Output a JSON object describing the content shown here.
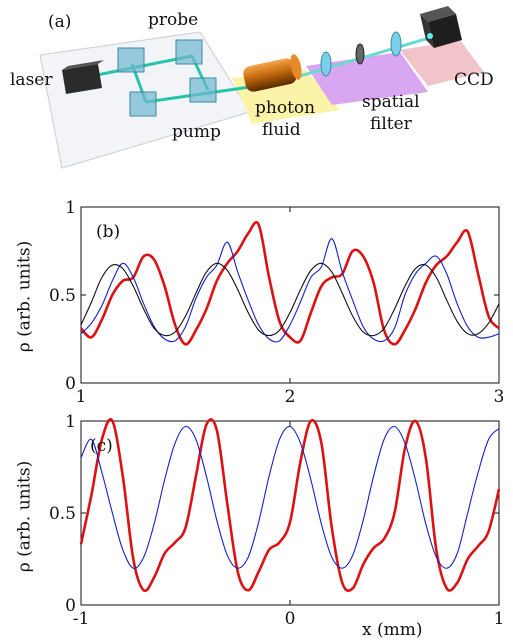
{
  "setup": {
    "panel_label": "(a)",
    "laser": "laser",
    "probe": "probe",
    "pump": "pump",
    "photon": "photon",
    "fluid": "fluid",
    "spatial": "spatial",
    "filter": "filter",
    "ccd": "CCD"
  },
  "chart_data": [
    {
      "type": "line",
      "panel_label": "(b)",
      "ylabel": "ρ (arb. units)",
      "xlim": [
        1,
        3
      ],
      "ylim": [
        0,
        1
      ],
      "xticks": [
        "1",
        "2",
        "3"
      ],
      "yticks": [
        "0",
        "0.5",
        "1"
      ],
      "series": [
        {
          "color": "#dd1111",
          "x": [
            1.0,
            1.05,
            1.1,
            1.15,
            1.2,
            1.25,
            1.3,
            1.35,
            1.4,
            1.45,
            1.5,
            1.55,
            1.6,
            1.65,
            1.7,
            1.75,
            1.8,
            1.85,
            1.9,
            1.95,
            2.0,
            2.05,
            2.1,
            2.15,
            2.2,
            2.25,
            2.3,
            2.35,
            2.4,
            2.45,
            2.5,
            2.55,
            2.6,
            2.65,
            2.7,
            2.75,
            2.8,
            2.85,
            2.9,
            2.95,
            3.0
          ],
          "values": [
            0.31,
            0.26,
            0.36,
            0.5,
            0.58,
            0.6,
            0.72,
            0.7,
            0.55,
            0.33,
            0.22,
            0.3,
            0.42,
            0.58,
            0.68,
            0.75,
            0.85,
            0.9,
            0.6,
            0.35,
            0.26,
            0.24,
            0.4,
            0.55,
            0.6,
            0.62,
            0.75,
            0.72,
            0.57,
            0.3,
            0.22,
            0.3,
            0.42,
            0.57,
            0.67,
            0.72,
            0.8,
            0.86,
            0.62,
            0.38,
            0.31
          ]
        },
        {
          "color": "#1122cc",
          "x": [
            1.0,
            1.05,
            1.1,
            1.15,
            1.2,
            1.25,
            1.3,
            1.35,
            1.4,
            1.45,
            1.5,
            1.55,
            1.6,
            1.65,
            1.7,
            1.75,
            1.8,
            1.85,
            1.9,
            1.95,
            2.0,
            2.05,
            2.1,
            2.15,
            2.2,
            2.25,
            2.3,
            2.35,
            2.4,
            2.45,
            2.5,
            2.55,
            2.6,
            2.65,
            2.7,
            2.75,
            2.8,
            2.85,
            2.9,
            2.95,
            3.0
          ],
          "values": [
            0.28,
            0.34,
            0.44,
            0.58,
            0.68,
            0.6,
            0.45,
            0.32,
            0.25,
            0.24,
            0.32,
            0.48,
            0.6,
            0.67,
            0.8,
            0.63,
            0.47,
            0.33,
            0.25,
            0.24,
            0.33,
            0.46,
            0.6,
            0.66,
            0.82,
            0.63,
            0.47,
            0.32,
            0.25,
            0.24,
            0.31,
            0.5,
            0.62,
            0.68,
            0.72,
            0.62,
            0.45,
            0.32,
            0.26,
            0.26,
            0.28
          ]
        },
        {
          "color": "#111111",
          "x": [
            1.0,
            1.05,
            1.1,
            1.15,
            1.2,
            1.25,
            1.3,
            1.35,
            1.4,
            1.45,
            1.5,
            1.55,
            1.6,
            1.65,
            1.7,
            1.75,
            1.8,
            1.85,
            1.9,
            1.95,
            2.0,
            2.05,
            2.1,
            2.15,
            2.2,
            2.25,
            2.3,
            2.35,
            2.4,
            2.45,
            2.5,
            2.55,
            2.6,
            2.65,
            2.7,
            2.75,
            2.8,
            2.85,
            2.9,
            2.95,
            3.0
          ],
          "values": [
            0.33,
            0.46,
            0.6,
            0.67,
            0.65,
            0.55,
            0.42,
            0.31,
            0.27,
            0.29,
            0.38,
            0.51,
            0.63,
            0.68,
            0.64,
            0.53,
            0.4,
            0.3,
            0.27,
            0.3,
            0.4,
            0.53,
            0.64,
            0.68,
            0.63,
            0.51,
            0.38,
            0.29,
            0.27,
            0.31,
            0.42,
            0.55,
            0.65,
            0.67,
            0.6,
            0.47,
            0.35,
            0.28,
            0.28,
            0.34,
            0.45
          ]
        }
      ]
    },
    {
      "type": "line",
      "panel_label": "(c)",
      "ylabel": "ρ (arb. units)",
      "xlabel": "x (mm)",
      "xlim": [
        -1,
        1
      ],
      "ylim": [
        0,
        1
      ],
      "xticks": [
        "-1",
        "0",
        "1"
      ],
      "yticks": [
        "0",
        "0.5",
        "1"
      ],
      "series": [
        {
          "color": "#dd1111",
          "x": [
            -1.0,
            -0.95,
            -0.9,
            -0.85,
            -0.8,
            -0.75,
            -0.7,
            -0.65,
            -0.6,
            -0.55,
            -0.5,
            -0.45,
            -0.4,
            -0.35,
            -0.3,
            -0.25,
            -0.2,
            -0.15,
            -0.1,
            -0.05,
            0.0,
            0.05,
            0.1,
            0.15,
            0.2,
            0.25,
            0.3,
            0.35,
            0.4,
            0.45,
            0.5,
            0.55,
            0.6,
            0.65,
            0.7,
            0.75,
            0.8,
            0.85,
            0.9,
            0.95,
            1.0
          ],
          "values": [
            0.33,
            0.6,
            0.9,
            1.0,
            0.7,
            0.25,
            0.08,
            0.15,
            0.28,
            0.34,
            0.42,
            0.7,
            0.98,
            0.95,
            0.55,
            0.18,
            0.08,
            0.18,
            0.3,
            0.34,
            0.45,
            0.78,
            1.0,
            0.88,
            0.42,
            0.12,
            0.09,
            0.22,
            0.31,
            0.36,
            0.5,
            0.85,
            1.0,
            0.8,
            0.3,
            0.09,
            0.12,
            0.25,
            0.32,
            0.4,
            0.63
          ]
        },
        {
          "color": "#1122cc",
          "x": [
            -1.0,
            -0.95,
            -0.9,
            -0.85,
            -0.8,
            -0.75,
            -0.7,
            -0.65,
            -0.6,
            -0.55,
            -0.5,
            -0.45,
            -0.4,
            -0.35,
            -0.3,
            -0.25,
            -0.2,
            -0.15,
            -0.1,
            -0.05,
            0.0,
            0.05,
            0.1,
            0.15,
            0.2,
            0.25,
            0.3,
            0.35,
            0.4,
            0.45,
            0.5,
            0.55,
            0.6,
            0.65,
            0.7,
            0.75,
            0.8,
            0.85,
            0.9,
            0.95,
            1.0
          ],
          "values": [
            0.8,
            0.9,
            0.72,
            0.5,
            0.3,
            0.2,
            0.26,
            0.44,
            0.68,
            0.88,
            0.97,
            0.9,
            0.7,
            0.46,
            0.27,
            0.2,
            0.26,
            0.45,
            0.7,
            0.9,
            0.97,
            0.88,
            0.68,
            0.44,
            0.26,
            0.2,
            0.27,
            0.46,
            0.7,
            0.9,
            0.97,
            0.88,
            0.68,
            0.44,
            0.26,
            0.2,
            0.28,
            0.5,
            0.72,
            0.9,
            0.96
          ]
        }
      ]
    }
  ]
}
